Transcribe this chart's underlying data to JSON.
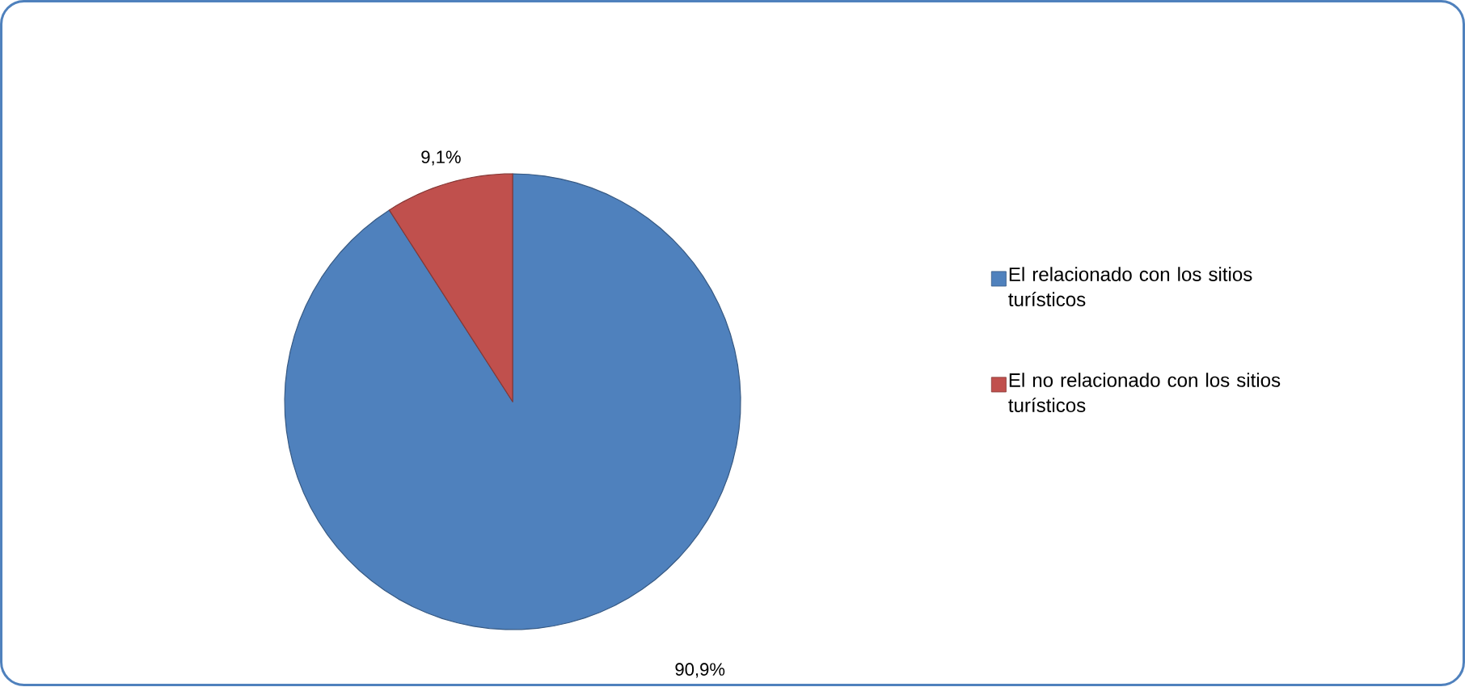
{
  "chart_data": {
    "type": "pie",
    "categories": [
      "El relacionado con los sitios turísticos",
      "El no relacionado con los sitios turísticos"
    ],
    "values": [
      90.9,
      9.1
    ],
    "colors": [
      "#4f81bd",
      "#c0504d"
    ],
    "value_labels": [
      "90,9%",
      "9,1%"
    ],
    "legend": "right"
  }
}
